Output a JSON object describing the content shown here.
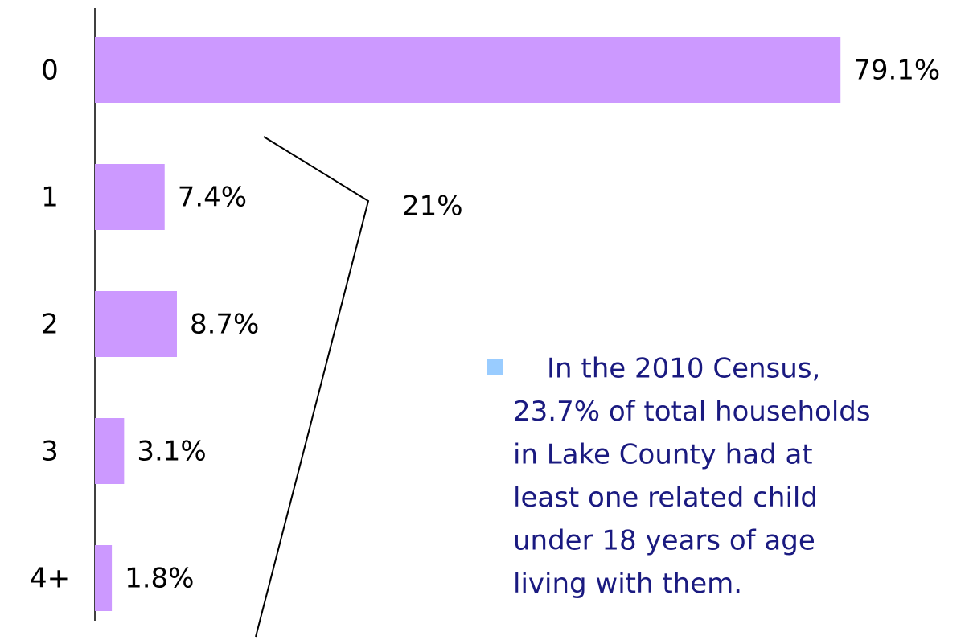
{
  "chart_data": {
    "type": "bar",
    "orientation": "horizontal",
    "categories": [
      "0",
      "1",
      "2",
      "3",
      "4+"
    ],
    "values": [
      79.1,
      7.4,
      8.7,
      3.1,
      1.8
    ],
    "value_labels": [
      "79.1%",
      "7.4%",
      "8.7%",
      "3.1%",
      "1.8%"
    ],
    "color": "#cc99ff",
    "xlim": [
      0,
      90
    ],
    "annotation": "21%",
    "bullet": {
      "color": "#99ccff",
      "lines": [
        "In the 2010 Census,",
        "23.7% of total households",
        "in Lake County had at",
        "least one related child",
        "under 18 years of age",
        "living with them."
      ]
    }
  }
}
